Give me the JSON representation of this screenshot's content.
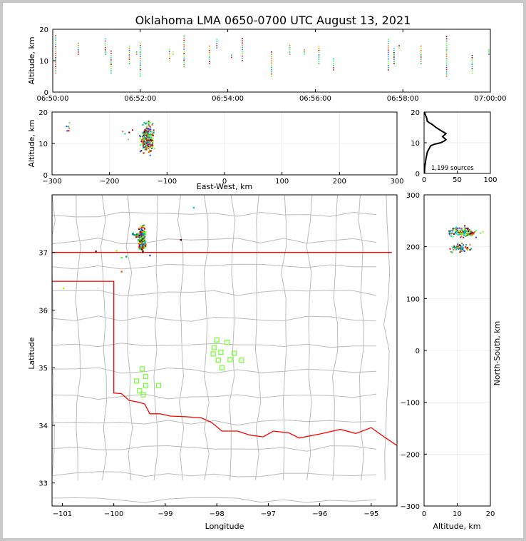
{
  "chart_data": [
    {
      "panel": "altitude-time",
      "type": "scatter",
      "title": "Oklahoma LMA 0650-0700 UTC August 13, 2021",
      "ylabel": "Altitude, km",
      "xlim": [
        "06:50:00",
        "07:00:00"
      ],
      "ylim": [
        0,
        20
      ],
      "xticks": [
        "06:50:00",
        "06:52:00",
        "06:54:00",
        "06:56:00",
        "06:58:00",
        "07:00:00"
      ],
      "yticks": [
        "0",
        "10",
        "20"
      ],
      "columns": [
        {
          "t": "06:50:04",
          "lo": 6,
          "hi": 18
        },
        {
          "t": "06:50:35",
          "lo": 12,
          "hi": 16
        },
        {
          "t": "06:51:12",
          "lo": 12,
          "hi": 17
        },
        {
          "t": "06:51:20",
          "lo": 6,
          "hi": 13
        },
        {
          "t": "06:51:45",
          "lo": 9,
          "hi": 15
        },
        {
          "t": "06:51:55",
          "lo": 12,
          "hi": 13
        },
        {
          "t": "06:52:00",
          "lo": 5,
          "hi": 16
        },
        {
          "t": "06:52:40",
          "lo": 10,
          "hi": 14
        },
        {
          "t": "06:52:45",
          "lo": 12,
          "hi": 13
        },
        {
          "t": "06:53:00",
          "lo": 8,
          "hi": 18
        },
        {
          "t": "06:53:35",
          "lo": 9,
          "hi": 15
        },
        {
          "t": "06:53:45",
          "lo": 14,
          "hi": 17
        },
        {
          "t": "06:54:05",
          "lo": 11,
          "hi": 12
        },
        {
          "t": "06:54:20",
          "lo": 10,
          "hi": 17
        },
        {
          "t": "06:55:00",
          "lo": 5,
          "hi": 13
        },
        {
          "t": "06:55:25",
          "lo": 12,
          "hi": 15
        },
        {
          "t": "06:55:45",
          "lo": 12,
          "hi": 14
        },
        {
          "t": "06:56:05",
          "lo": 9,
          "hi": 15
        },
        {
          "t": "06:56:25",
          "lo": 7,
          "hi": 11
        },
        {
          "t": "06:57:40",
          "lo": 7,
          "hi": 17
        },
        {
          "t": "06:57:48",
          "lo": 9,
          "hi": 14
        },
        {
          "t": "06:57:55",
          "lo": 14,
          "hi": 15
        },
        {
          "t": "06:58:25",
          "lo": 9,
          "hi": 15
        },
        {
          "t": "06:59:00",
          "lo": 5,
          "hi": 18
        },
        {
          "t": "06:59:35",
          "lo": 6,
          "hi": 12
        },
        {
          "t": "06:59:58",
          "lo": 12,
          "hi": 14
        }
      ]
    },
    {
      "panel": "altitude-eastwest",
      "type": "scatter",
      "xlabel": "East-West, km",
      "ylabel": "Altitude, km",
      "xlim": [
        -300,
        300
      ],
      "ylim": [
        0,
        20
      ],
      "xticks": [
        "−300",
        "−200",
        "−100",
        "0",
        "100",
        "200",
        "300"
      ],
      "yticks": [
        "0",
        "10",
        "20"
      ],
      "clusters": [
        {
          "x": -135,
          "y": 12,
          "sx": 8,
          "sy": 3.2,
          "n": 230
        },
        {
          "x": -272,
          "y": 14,
          "sx": 3,
          "sy": 2,
          "n": 6
        },
        {
          "x": -170,
          "y": 13,
          "sx": 8,
          "sy": 2,
          "n": 5
        }
      ]
    },
    {
      "panel": "altitude-histogram",
      "type": "line",
      "annotation": "1,199 sources",
      "xlim": [
        0,
        100
      ],
      "ylim": [
        0,
        20
      ],
      "xticks": [
        "0",
        "50",
        "100"
      ],
      "yticks": [
        "0",
        "10",
        "20"
      ],
      "counts": [
        [
          0.5,
          0
        ],
        [
          1,
          2
        ],
        [
          3,
          5
        ],
        [
          5,
          7
        ],
        [
          10,
          9
        ],
        [
          15,
          9.5
        ],
        [
          25,
          10
        ],
        [
          30,
          10.5
        ],
        [
          33,
          11
        ],
        [
          28,
          12
        ],
        [
          33,
          13
        ],
        [
          25,
          14
        ],
        [
          18,
          15
        ],
        [
          12,
          16
        ],
        [
          8,
          16.5
        ],
        [
          5,
          17
        ],
        [
          4,
          18
        ],
        [
          2,
          19
        ],
        [
          0.5,
          20
        ]
      ]
    },
    {
      "panel": "plan-view",
      "type": "scatter",
      "xlabel": "Longitude",
      "ylabel": "Latitude",
      "xlim": [
        -101.2,
        -94.5
      ],
      "ylim": [
        32.6,
        38.0
      ],
      "xticks": [
        "−101",
        "−100",
        "−99",
        "−98",
        "−97",
        "−96",
        "−95"
      ],
      "yticks": [
        "33",
        "34",
        "35",
        "36",
        "37"
      ],
      "clusters": [
        {
          "lon": -99.45,
          "lat": 37.25,
          "slon": 0.05,
          "slat": 0.14,
          "n": 200
        },
        {
          "lon": -99.55,
          "lat": 37.3,
          "slon": 0.06,
          "slat": 0.03,
          "n": 25
        }
      ],
      "isolated": [
        {
          "lon": -98.45,
          "lat": 37.78
        },
        {
          "lon": -100.98,
          "lat": 36.38
        },
        {
          "lon": -99.95,
          "lat": 37.03
        },
        {
          "lon": -99.76,
          "lat": 36.93
        },
        {
          "lon": -99.85,
          "lat": 36.91
        },
        {
          "lon": -99.3,
          "lat": 36.95
        },
        {
          "lon": -98.7,
          "lat": 37.22
        },
        {
          "lon": -100.35,
          "lat": 37.02
        },
        {
          "lon": -99.85,
          "lat": 36.67
        }
      ],
      "stations": [
        {
          "lon": -98.0,
          "lat": 35.48
        },
        {
          "lon": -97.8,
          "lat": 35.44
        },
        {
          "lon": -98.05,
          "lat": 35.35
        },
        {
          "lon": -98.07,
          "lat": 35.24
        },
        {
          "lon": -97.92,
          "lat": 35.27
        },
        {
          "lon": -97.66,
          "lat": 35.25
        },
        {
          "lon": -97.97,
          "lat": 35.13
        },
        {
          "lon": -97.74,
          "lat": 35.14
        },
        {
          "lon": -97.52,
          "lat": 35.13
        },
        {
          "lon": -97.9,
          "lat": 35.0
        },
        {
          "lon": -99.45,
          "lat": 34.98
        },
        {
          "lon": -99.38,
          "lat": 34.85
        },
        {
          "lon": -99.56,
          "lat": 34.77
        },
        {
          "lon": -99.38,
          "lat": 34.69
        },
        {
          "lon": -99.13,
          "lat": 34.69
        },
        {
          "lon": -99.5,
          "lat": 34.6
        },
        {
          "lon": -99.43,
          "lat": 34.53
        }
      ]
    },
    {
      "panel": "northsouth-altitude",
      "type": "scatter",
      "xlabel": "Altitude, km",
      "ylabel": "North-South, km",
      "xlim": [
        0,
        20
      ],
      "ylim": [
        -300,
        300
      ],
      "xticks": [
        "0",
        "10",
        "20"
      ],
      "yticks": [
        "−300",
        "−200",
        "−100",
        "0",
        "100",
        "200",
        "300"
      ],
      "clusters": [
        {
          "x": 12,
          "y": 228,
          "sx": 3,
          "sy": 6,
          "n": 140
        },
        {
          "x": 11,
          "y": 198,
          "sx": 2,
          "sy": 6,
          "n": 60
        }
      ]
    }
  ],
  "colors": {
    "border": "#ff0000",
    "counties": "#bbbbbb",
    "stations": "#7aff3c",
    "histogram": "#000000",
    "frame_bg": "#c8c8c8",
    "source_palette": [
      "#2050ff",
      "#00c8d0",
      "#00c060",
      "#40ff40",
      "#90ff00",
      "#ff6000",
      "#e00000",
      "#600000"
    ]
  }
}
